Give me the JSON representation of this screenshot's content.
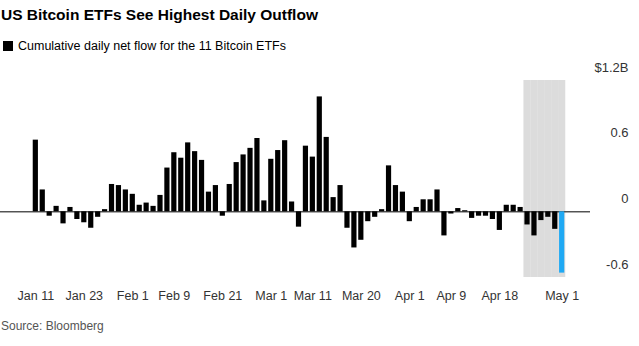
{
  "chart_data": {
    "type": "bar",
    "title": "US Bitcoin ETFs See Highest Daily Outflow",
    "source": "Source: Bloomberg",
    "legend": "top-left",
    "grid": false,
    "categories": [
      "Jan 11",
      null,
      null,
      null,
      null,
      null,
      null,
      "Jan 23",
      null,
      null,
      null,
      null,
      null,
      null,
      "Feb 1",
      null,
      null,
      null,
      null,
      null,
      "Feb 9",
      null,
      null,
      null,
      null,
      null,
      null,
      "Feb 21",
      null,
      null,
      null,
      null,
      null,
      null,
      "Mar 1",
      null,
      null,
      null,
      null,
      null,
      "Mar 11",
      null,
      null,
      null,
      null,
      null,
      null,
      "Mar 20",
      null,
      null,
      null,
      null,
      null,
      null,
      "Apr 1",
      null,
      null,
      null,
      null,
      null,
      "Apr 9",
      null,
      null,
      null,
      null,
      null,
      null,
      "Apr 18",
      null,
      null,
      null,
      null,
      null,
      null,
      null,
      null,
      "May 1"
    ],
    "series": [
      {
        "name": "Cumulative daily net flow for the 11 Bitcoin ETFs",
        "color": "#000000",
        "values": [
          0.655,
          0.2,
          -0.04,
          0.05,
          -0.11,
          0.04,
          -0.07,
          -0.1,
          -0.15,
          -0.05,
          0.02,
          0.25,
          0.24,
          0.2,
          0.16,
          0.06,
          0.08,
          0.05,
          0.15,
          0.4,
          0.54,
          0.49,
          0.63,
          0.55,
          0.47,
          0.18,
          0.24,
          -0.04,
          0.25,
          0.45,
          0.52,
          0.58,
          0.67,
          0.1,
          0.48,
          0.56,
          0.65,
          0.09,
          -0.14,
          0.6,
          0.5,
          1.05,
          0.68,
          0.13,
          0.24,
          -0.15,
          -0.33,
          -0.26,
          -0.09,
          -0.05,
          0.02,
          0.42,
          0.24,
          0.18,
          -0.09,
          0.04,
          0.11,
          0.11,
          0.2,
          -0.22,
          -0.02,
          0.03,
          0.01,
          -0.06,
          -0.04,
          -0.04,
          -0.07,
          -0.17,
          0.06,
          0.06,
          0.04,
          -0.12,
          -0.22,
          -0.08,
          -0.05,
          -0.16,
          -0.56
        ],
        "colors": [
          "#000000",
          "#000000",
          "#000000",
          "#000000",
          "#000000",
          "#000000",
          "#000000",
          "#000000",
          "#000000",
          "#000000",
          "#000000",
          "#000000",
          "#000000",
          "#000000",
          "#000000",
          "#000000",
          "#000000",
          "#000000",
          "#000000",
          "#000000",
          "#000000",
          "#000000",
          "#000000",
          "#000000",
          "#000000",
          "#000000",
          "#000000",
          "#000000",
          "#000000",
          "#000000",
          "#000000",
          "#000000",
          "#000000",
          "#000000",
          "#000000",
          "#000000",
          "#000000",
          "#000000",
          "#000000",
          "#000000",
          "#000000",
          "#000000",
          "#000000",
          "#000000",
          "#000000",
          "#000000",
          "#000000",
          "#000000",
          "#000000",
          "#000000",
          "#000000",
          "#000000",
          "#000000",
          "#000000",
          "#000000",
          "#000000",
          "#000000",
          "#000000",
          "#000000",
          "#000000",
          "#000000",
          "#000000",
          "#000000",
          "#000000",
          "#000000",
          "#000000",
          "#000000",
          "#000000",
          "#000000",
          "#000000",
          "#000000",
          "#000000",
          "#000000",
          "#000000",
          "#000000",
          "#000000",
          "#1fa9f4"
        ]
      }
    ],
    "highlight": {
      "from": 71,
      "to": 76
    },
    "ylim": [
      -0.6,
      1.2
    ],
    "yticks": [
      {
        "value": 1.2,
        "label": "$1.2B"
      },
      0.6,
      0,
      -0.6
    ]
  }
}
